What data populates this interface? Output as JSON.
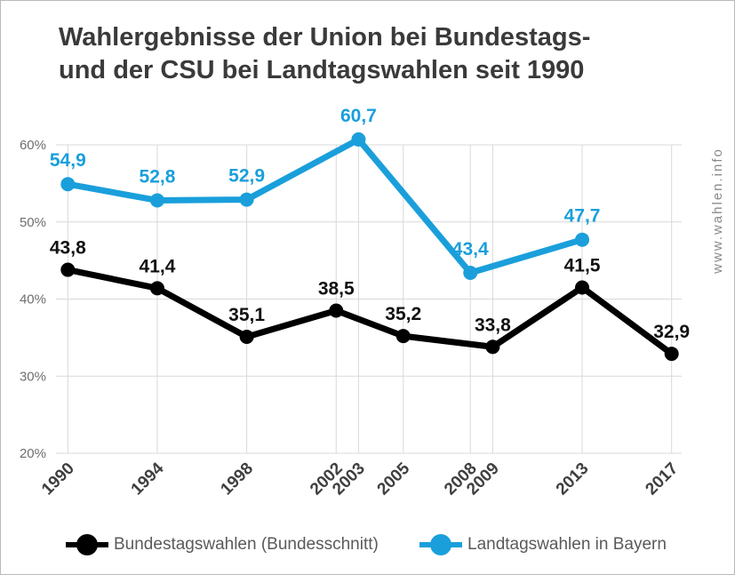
{
  "title_lines": [
    "Wahlergebnisse der Union bei Bundestags-",
    "und der CSU bei Landtagswahlen seit 1990"
  ],
  "watermark": "www.wahlen.info",
  "colors": {
    "bundestag": "#000000",
    "landtag": "#1a9fdb",
    "grid": "#d9d9d9",
    "axis_text": "#6e6e6e",
    "title": "#3a3a3a"
  },
  "chart_data": {
    "type": "line",
    "x": [
      1990,
      1994,
      1998,
      2002,
      2003,
      2005,
      2008,
      2009,
      2013,
      2017
    ],
    "x_tick_labels": [
      "1990",
      "1994",
      "1998",
      "2002",
      "2003",
      "2005",
      "2008",
      "2009",
      "2013",
      "2017"
    ],
    "y_tick_labels": [
      "20%",
      "30%",
      "40%",
      "50%",
      "60%"
    ],
    "y_ticks": [
      20,
      30,
      40,
      50,
      60
    ],
    "ylim": [
      20,
      60
    ],
    "grid": true,
    "legend_position": "bottom",
    "series": [
      {
        "key": "bundestag",
        "name": "Bundestagswahlen (Bundesschnitt)",
        "color": "#000000",
        "points": [
          {
            "x": 1990,
            "y": 43.8,
            "label": "43,8"
          },
          {
            "x": 1994,
            "y": 41.4,
            "label": "41,4"
          },
          {
            "x": 1998,
            "y": 35.1,
            "label": "35,1"
          },
          {
            "x": 2002,
            "y": 38.5,
            "label": "38,5"
          },
          {
            "x": 2005,
            "y": 35.2,
            "label": "35,2"
          },
          {
            "x": 2009,
            "y": 33.8,
            "label": "33,8"
          },
          {
            "x": 2013,
            "y": 41.5,
            "label": "41,5"
          },
          {
            "x": 2017,
            "y": 32.9,
            "label": "32,9"
          }
        ]
      },
      {
        "key": "landtag",
        "name": "Landtagswahlen in Bayern",
        "color": "#1a9fdb",
        "points": [
          {
            "x": 1990,
            "y": 54.9,
            "label": "54,9"
          },
          {
            "x": 1994,
            "y": 52.8,
            "label": "52,8"
          },
          {
            "x": 1998,
            "y": 52.9,
            "label": "52,9"
          },
          {
            "x": 2003,
            "y": 60.7,
            "label": "60,7"
          },
          {
            "x": 2008,
            "y": 43.4,
            "label": "43,4"
          },
          {
            "x": 2013,
            "y": 47.7,
            "label": "47,7"
          }
        ]
      }
    ]
  }
}
